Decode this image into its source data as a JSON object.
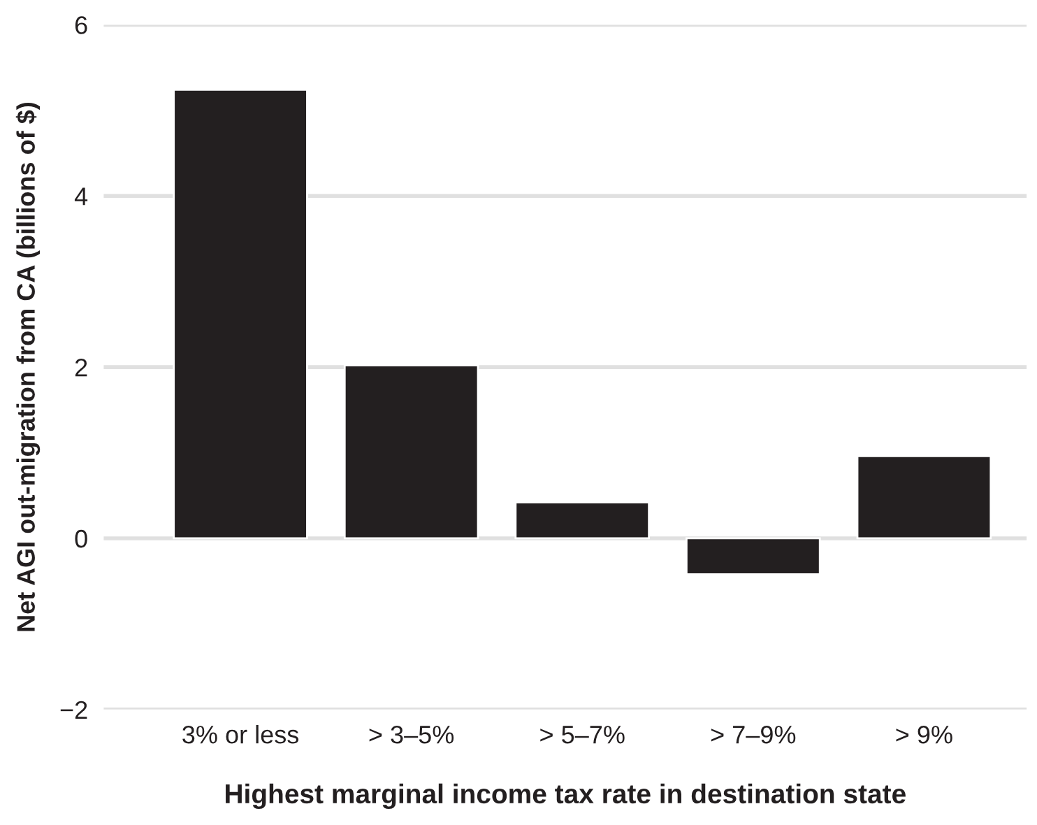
{
  "chart_data": {
    "type": "bar",
    "xlabel": "Highest marginal income tax rate in destination state",
    "ylabel": "Net AGI out-migration from CA (billions of $)",
    "categories": [
      "3% or less",
      "> 3–5%",
      "> 5–7%",
      "> 7–9%",
      "> 9%"
    ],
    "values": [
      5.24,
      2.02,
      0.42,
      -0.42,
      0.96
    ],
    "color": "#231f20",
    "ylim": [
      -2,
      6
    ],
    "yticks": [
      {
        "value": -2,
        "label": "−2"
      },
      0,
      2,
      4,
      6
    ],
    "grid": "y"
  }
}
